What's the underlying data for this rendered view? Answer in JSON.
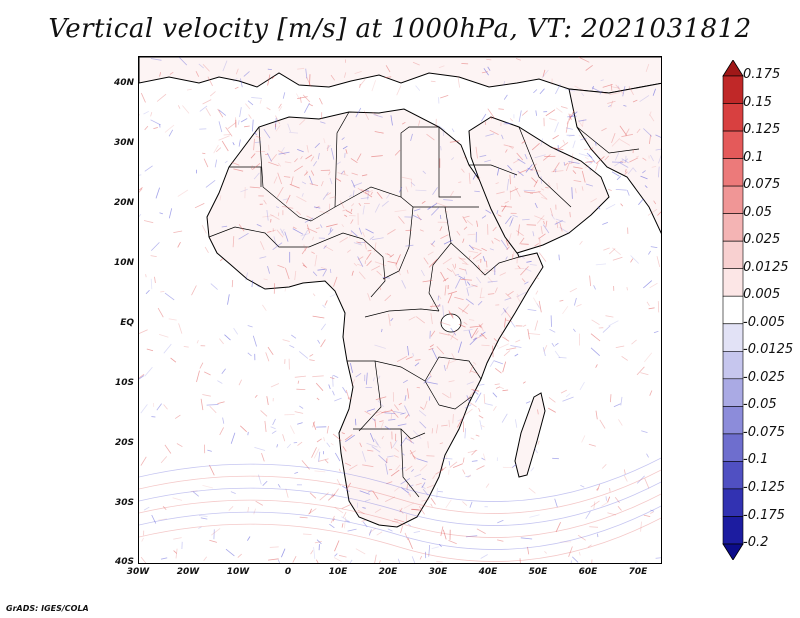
{
  "title": "Vertical velocity [m/s] at 1000hPa, VT: 2021031812",
  "credit": "GrADS: IGES/COLA",
  "lat_labels": [
    "40N",
    "30N",
    "20N",
    "10N",
    "EQ",
    "10S",
    "20S",
    "30S",
    "40S"
  ],
  "lat_values": [
    40,
    30,
    20,
    10,
    0,
    -10,
    -20,
    -30,
    -40
  ],
  "lon_labels": [
    "30W",
    "20W",
    "10W",
    "0",
    "10E",
    "20E",
    "30E",
    "40E",
    "50E",
    "60E",
    "70E"
  ],
  "lon_values": [
    -30,
    -20,
    -10,
    0,
    10,
    20,
    30,
    40,
    50,
    60,
    70
  ],
  "colorbar": {
    "levels": [
      "0.175",
      "0.15",
      "0.125",
      "0.1",
      "0.075",
      "0.05",
      "0.025",
      "0.0125",
      "0.005",
      "-0.005",
      "-0.0125",
      "-0.025",
      "-0.05",
      "-0.075",
      "-0.1",
      "-0.125",
      "-0.175",
      "-0.2"
    ],
    "colors": [
      "#a01818",
      "#c02828",
      "#d84040",
      "#e45a5a",
      "#ec7a7a",
      "#f09696",
      "#f4b4b4",
      "#f8d0d0",
      "#fce6e6",
      "#ffffff",
      "#e2e2f6",
      "#c6c6ee",
      "#aaaae4",
      "#8c8cda",
      "#6e6ece",
      "#5050c2",
      "#3232b2",
      "#1c1ca0",
      "#0c0c8a"
    ]
  },
  "map": {
    "lon_range": [
      -30,
      75
    ],
    "lat_range": [
      -40,
      45
    ],
    "land_fill": "#fdf4f4",
    "ocean_fill": "#ffffff",
    "coast_color": "#000000",
    "updraft_color": "#e06060",
    "downdraft_color": "#5a5ad8"
  }
}
